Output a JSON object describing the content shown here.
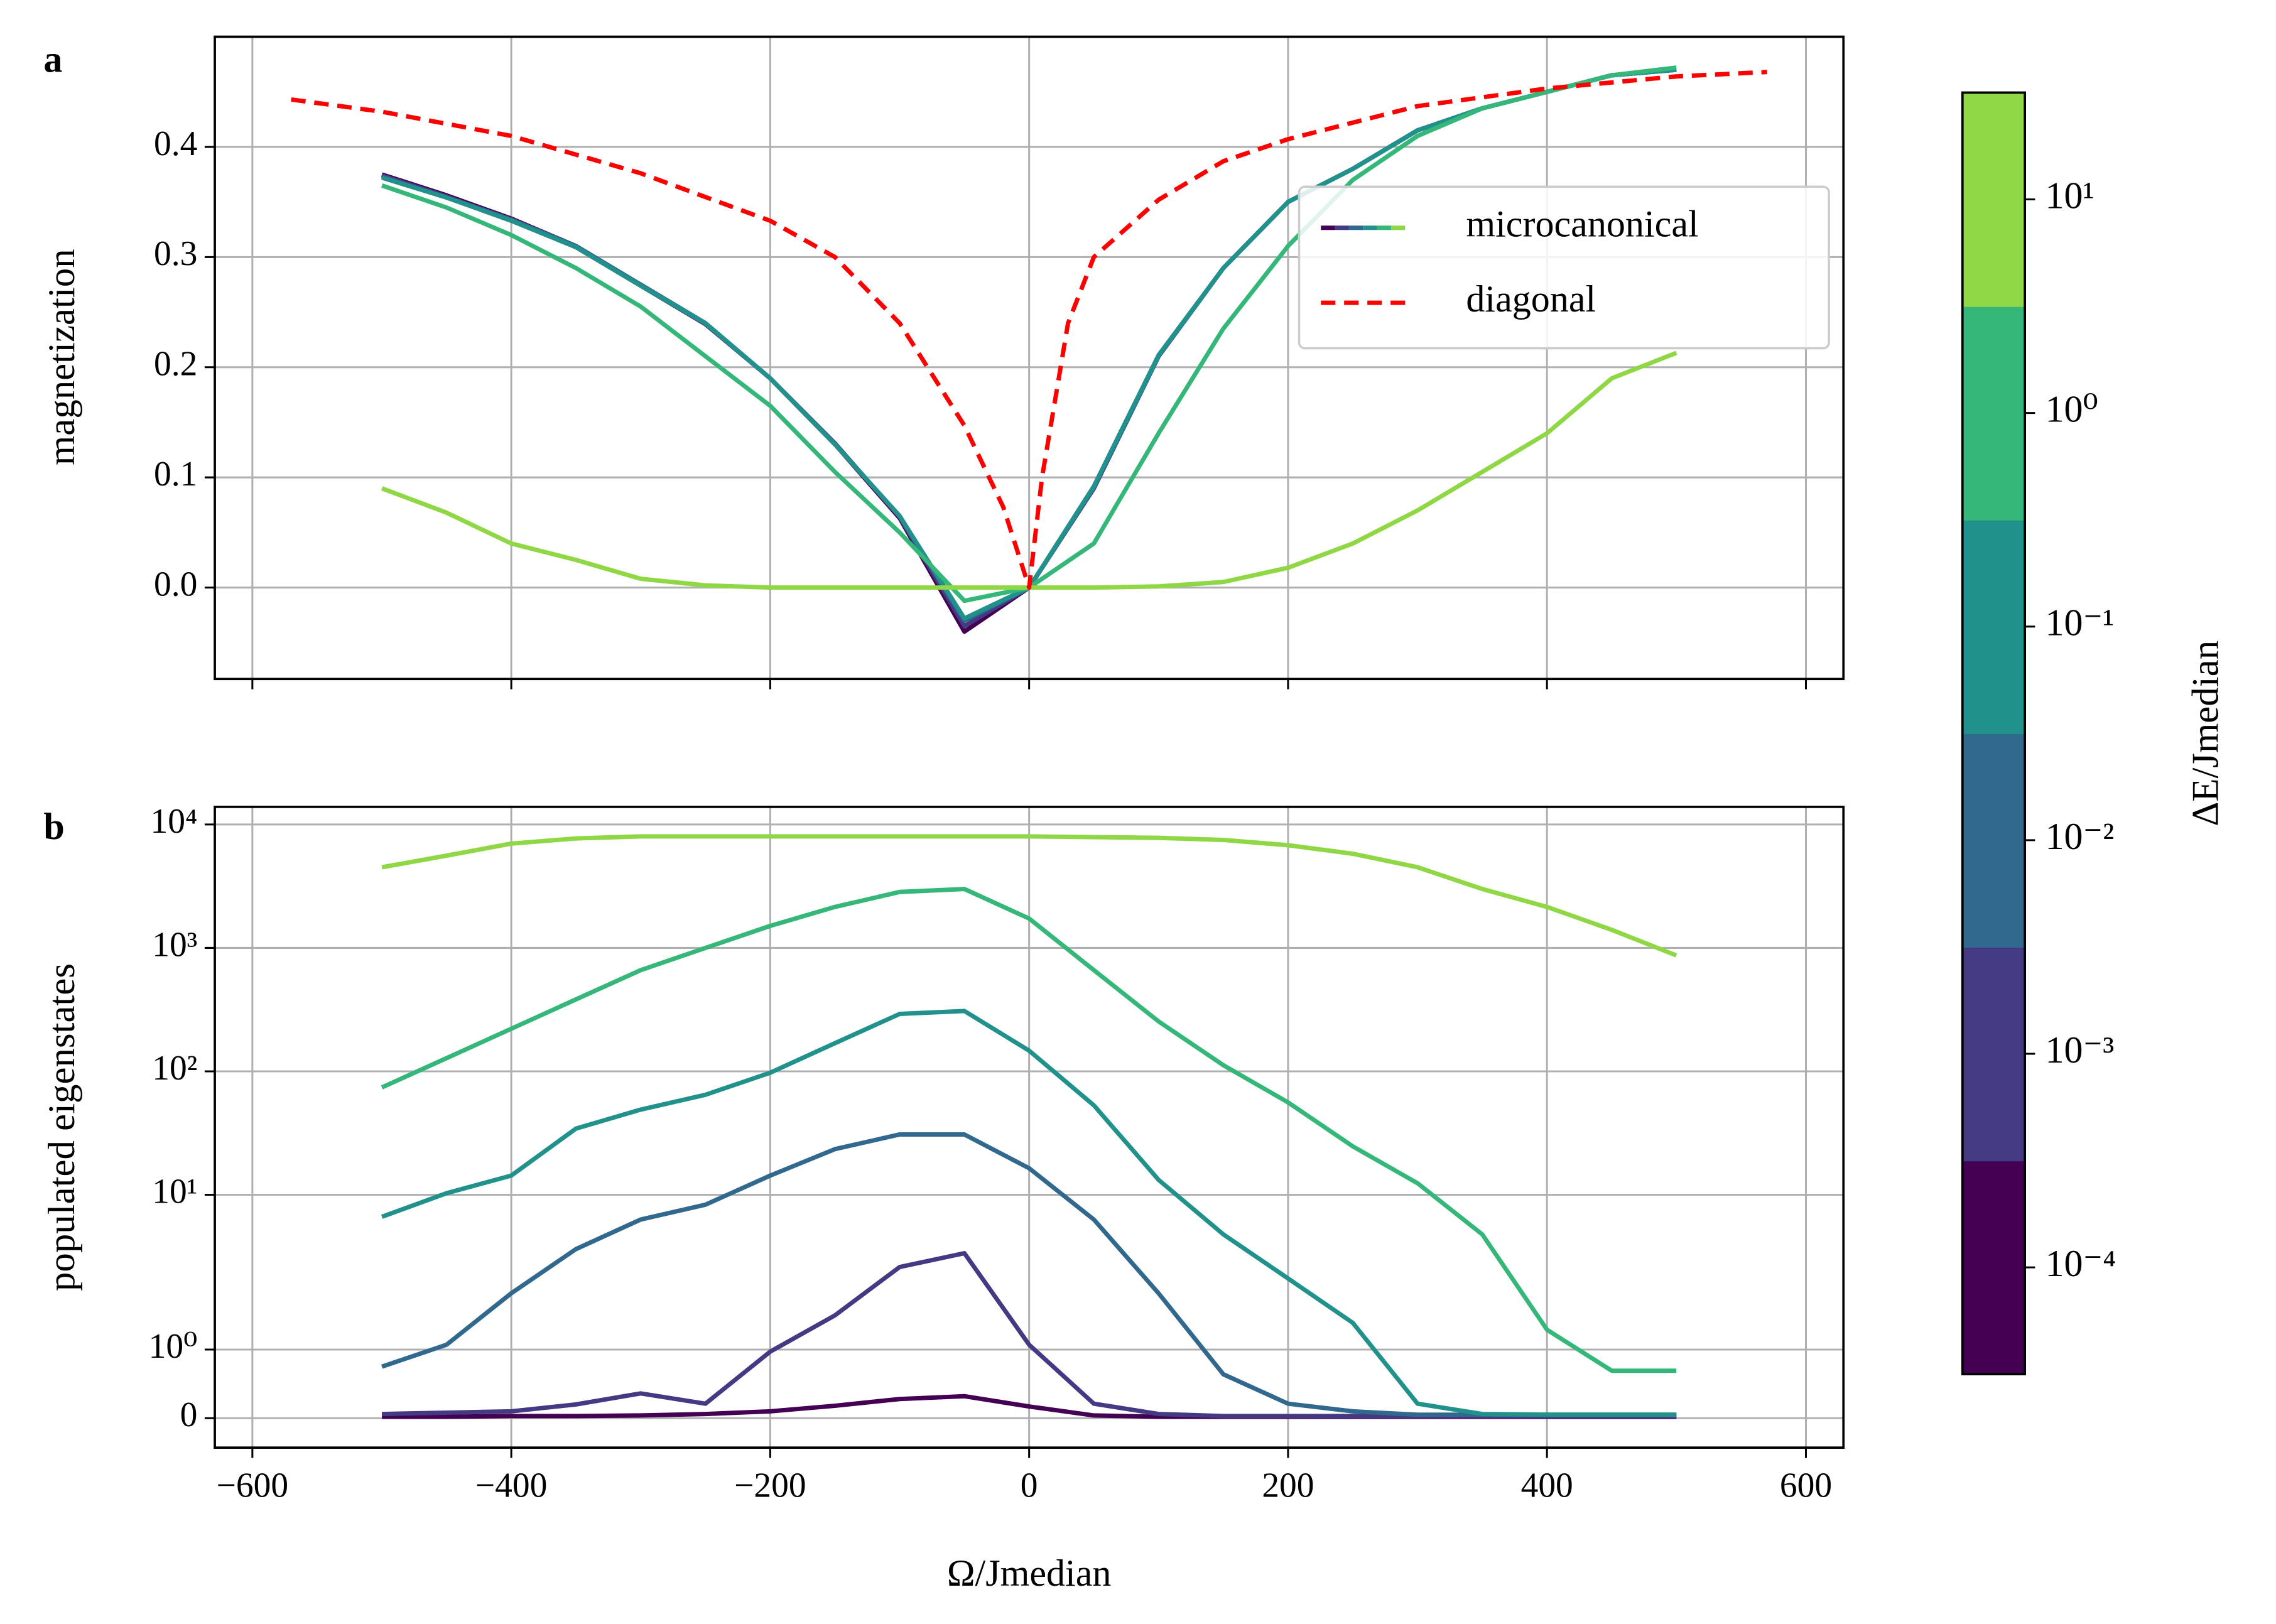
{
  "chart_data": [
    {
      "type": "line",
      "label": "a",
      "ylabel": "magnetization",
      "x": [
        -500,
        -450,
        -400,
        -350,
        -300,
        -250,
        -200,
        -150,
        -100,
        -50,
        0,
        50,
        100,
        150,
        200,
        250,
        300,
        350,
        400,
        450,
        500
      ],
      "microcanonical": {
        "name": "microcanonical",
        "series": [
          {
            "color": "#440154",
            "values": [
              0.375,
              0.356,
              0.335,
              0.31,
              0.275,
              0.24,
              0.19,
              0.13,
              0.063,
              -0.04,
              0.0,
              0.09,
              0.21,
              0.29,
              0.35,
              0.38,
              0.415,
              0.435,
              0.45,
              0.465,
              0.47
            ]
          },
          {
            "color": "#443983",
            "values": [
              0.374,
              0.355,
              0.334,
              0.309,
              0.274,
              0.239,
              0.19,
              0.131,
              0.064,
              -0.035,
              0.0,
              0.09,
              0.21,
              0.29,
              0.35,
              0.38,
              0.415,
              0.435,
              0.45,
              0.465,
              0.47
            ]
          },
          {
            "color": "#31688e",
            "values": [
              0.373,
              0.354,
              0.334,
              0.31,
              0.275,
              0.24,
              0.19,
              0.13,
              0.065,
              -0.03,
              0.0,
              0.091,
              0.21,
              0.29,
              0.35,
              0.38,
              0.415,
              0.435,
              0.45,
              0.465,
              0.47
            ]
          },
          {
            "color": "#21918c",
            "values": [
              0.372,
              0.354,
              0.333,
              0.309,
              0.274,
              0.24,
              0.19,
              0.13,
              0.065,
              -0.028,
              0.0,
              0.092,
              0.211,
              0.29,
              0.35,
              0.38,
              0.415,
              0.435,
              0.45,
              0.465,
              0.47
            ]
          },
          {
            "color": "#35b779",
            "values": [
              0.365,
              0.345,
              0.32,
              0.29,
              0.255,
              0.21,
              0.165,
              0.105,
              0.05,
              -0.012,
              0.0,
              0.04,
              0.14,
              0.235,
              0.31,
              0.37,
              0.41,
              0.435,
              0.45,
              0.465,
              0.472
            ]
          },
          {
            "color": "#8fd744",
            "values": [
              0.09,
              0.068,
              0.04,
              0.025,
              0.008,
              0.002,
              0.0,
              0.0,
              0.0,
              0.0,
              0.0,
              0.0,
              0.001,
              0.005,
              0.018,
              0.04,
              0.07,
              0.105,
              0.14,
              0.19,
              0.213
            ]
          }
        ]
      },
      "diagonal": {
        "name": "diagonal",
        "color": "#ff0000",
        "x": [
          -570,
          -500,
          -400,
          -300,
          -200,
          -150,
          -100,
          -50,
          -20,
          0,
          10,
          30,
          50,
          100,
          150,
          200,
          300,
          400,
          500,
          570
        ],
        "values": [
          0.443,
          0.432,
          0.41,
          0.376,
          0.333,
          0.3,
          0.24,
          0.147,
          0.073,
          0.0,
          0.1,
          0.24,
          0.3,
          0.352,
          0.387,
          0.407,
          0.437,
          0.453,
          0.464,
          0.468
        ]
      },
      "xlim": [
        -629,
        629
      ],
      "xticks": [
        -600,
        -400,
        -200,
        0,
        200,
        400,
        600
      ],
      "ylim": [
        -0.083,
        0.5
      ],
      "yticks": [
        {
          "value": 0,
          "label": "0.0"
        },
        0.1,
        0.2,
        0.3,
        0.4
      ],
      "grid": true,
      "legend": "upper right"
    },
    {
      "type": "line",
      "label": "b",
      "ylabel": "populated eigenstates",
      "xlabel": "Ω/Jmedian",
      "yscale": "symlog",
      "linthresh": 2,
      "linscale": 1,
      "x": [
        -500,
        -450,
        -400,
        -350,
        -300,
        -250,
        -200,
        -150,
        -100,
        -50,
        0,
        50,
        100,
        150,
        200,
        250,
        300,
        350,
        400,
        450,
        500
      ],
      "series": [
        {
          "color": "#440154",
          "values": [
            0.02,
            0.02,
            0.03,
            0.03,
            0.04,
            0.06,
            0.1,
            0.18,
            0.28,
            0.32,
            0.17,
            0.04,
            0.02,
            0.02,
            0.02,
            0.02,
            0.02,
            0.02,
            0.02,
            0.02,
            0.02
          ]
        },
        {
          "color": "#443983",
          "values": [
            0.06,
            0.08,
            0.1,
            0.2,
            0.36,
            0.21,
            0.97,
            1.5,
            2.6,
            3.36,
            1.07,
            0.21,
            0.06,
            0.03,
            0.03,
            0.03,
            0.03,
            0.03,
            0.03,
            0.03,
            0.03
          ]
        },
        {
          "color": "#31688e",
          "values": [
            0.75,
            1.07,
            1.82,
            3.63,
            6.3,
            8.3,
            14.3,
            23.4,
            30.8,
            30.8,
            16.4,
            6.3,
            1.82,
            0.64,
            0.21,
            0.1,
            0.05,
            0.05,
            0.05,
            0.05,
            0.05
          ]
        },
        {
          "color": "#21918c",
          "values": [
            6.64,
            10.3,
            14.3,
            34.4,
            49,
            64.6,
            97.5,
            169,
            292,
            308,
            147,
            53,
            13.2,
            4.78,
            2.1,
            1.39,
            0.21,
            0.06,
            0.05,
            0.05,
            0.05
          ]
        },
        {
          "color": "#35b779",
          "values": [
            74,
            128,
            221,
            383,
            660,
            1000,
            1510,
            2150,
            2840,
            3000,
            1730,
            660,
            254,
            112,
            56,
            24.7,
            12.4,
            4.78,
            1.29,
            0.69,
            0.69
          ]
        },
        {
          "color": "#8fd744",
          "values": [
            4500,
            5600,
            7000,
            7700,
            8000,
            8000,
            8000,
            8000,
            8000,
            8000,
            8000,
            7900,
            7800,
            7500,
            6800,
            5800,
            4500,
            3000,
            2150,
            1400,
            870
          ]
        }
      ],
      "xlim": [
        -629,
        629
      ],
      "xticks": [
        {
          "value": -600,
          "label": "−600"
        },
        {
          "value": -400,
          "label": "−400"
        },
        {
          "value": -200,
          "label": "−200"
        },
        0,
        200,
        400,
        600
      ],
      "ylim": [
        -0.43,
        13900
      ],
      "yticks": [
        0,
        {
          "value": 1,
          "label": "10⁰"
        },
        {
          "value": 10,
          "label": "10¹"
        },
        {
          "value": 100,
          "label": "10²"
        },
        {
          "value": 1000,
          "label": "10³"
        },
        {
          "value": 10000,
          "label": "10⁴"
        }
      ],
      "grid": true
    }
  ],
  "colorbar": {
    "label": "ΔE/Jmedian",
    "lim": [
      -4.5,
      1.5
    ],
    "colors": [
      "#440154",
      "#443983",
      "#31688e",
      "#21918c",
      "#35b779",
      "#8fd744"
    ],
    "ticks": [
      {
        "value": -4,
        "label": "10⁻⁴"
      },
      {
        "value": -3,
        "label": "10⁻³"
      },
      {
        "value": -2,
        "label": "10⁻²"
      },
      {
        "value": -1,
        "label": "10⁻¹"
      },
      {
        "value": 0,
        "label": "10⁰"
      },
      {
        "value": 1,
        "label": "10¹"
      }
    ]
  }
}
